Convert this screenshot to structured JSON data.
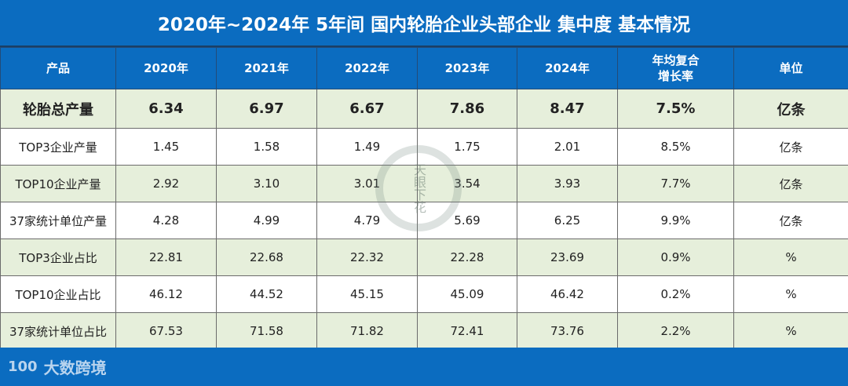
{
  "title": "2020年~2024年 5年间 国内轮胎企业头部企业 集中度 基本情况",
  "headers": [
    "产品",
    "2020年",
    "2021年",
    "2022年",
    "2023年",
    "2024年",
    "年均复合\n增长率",
    "单位"
  ],
  "rows": [
    {
      "cells": [
        "轮胎总产量",
        "6.34",
        "6.97",
        "6.67",
        "7.86",
        "8.47",
        "7.5%",
        "亿条"
      ]
    },
    {
      "cells": [
        "TOP3企业产量",
        "1.45",
        "1.58",
        "1.49",
        "1.75",
        "2.01",
        "8.5%",
        "亿条"
      ]
    },
    {
      "cells": [
        "TOP10企业产量",
        "2.92",
        "3.10",
        "3.01",
        "3.54",
        "3.93",
        "7.7%",
        "亿条"
      ]
    },
    {
      "cells": [
        "37家统计单位产量",
        "4.28",
        "4.99",
        "4.79",
        "5.69",
        "6.25",
        "9.9%",
        "亿条"
      ]
    },
    {
      "cells": [
        "TOP3企业占比",
        "22.81",
        "22.68",
        "22.32",
        "22.28",
        "23.69",
        "0.9%",
        "%"
      ]
    },
    {
      "cells": [
        "TOP10企业占比",
        "46.12",
        "44.52",
        "45.15",
        "45.09",
        "46.42",
        "0.2%",
        "%"
      ]
    },
    {
      "cells": [
        "37家统计单位占比",
        "67.53",
        "71.58",
        "71.82",
        "72.41",
        "73.76",
        "2.2%",
        "%"
      ]
    }
  ],
  "footer": {
    "logo": "100",
    "brand": "大数跨境"
  },
  "watermark": "天眼下花",
  "colors": {
    "blue": "#0b6cc0",
    "green_row": "#e6efdb"
  }
}
